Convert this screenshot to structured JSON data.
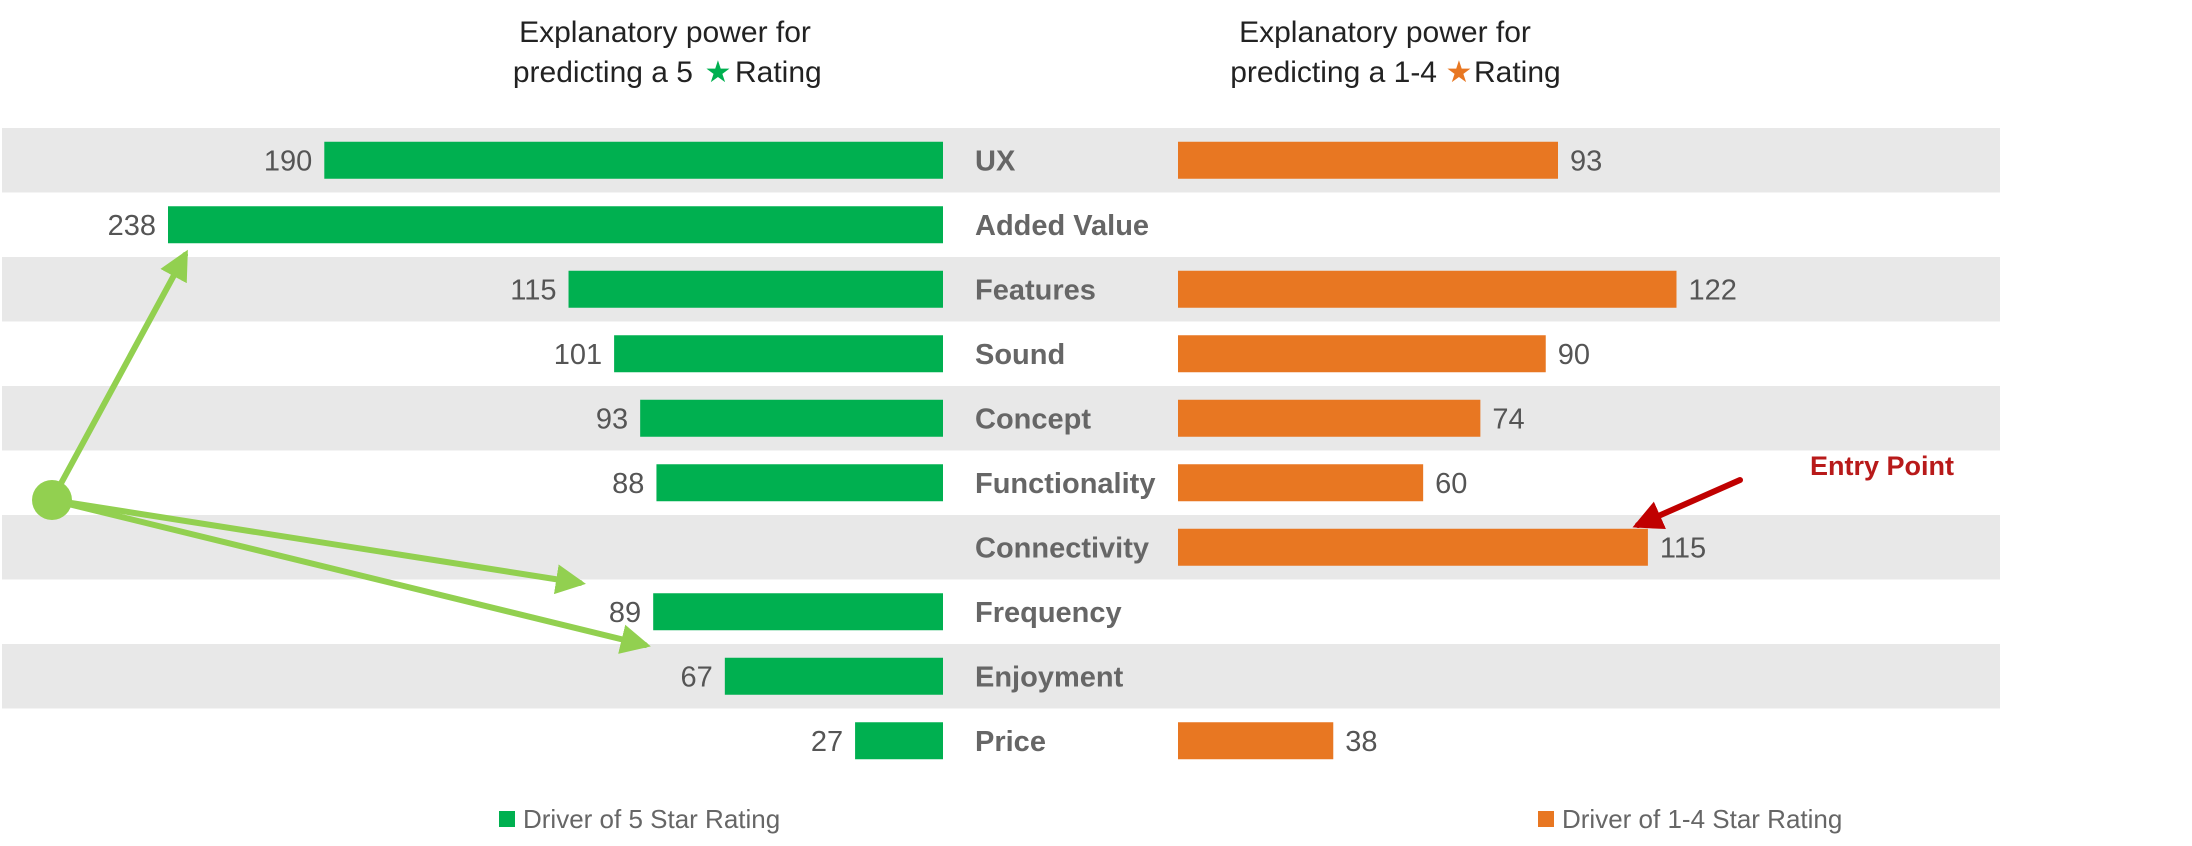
{
  "chart_data": {
    "type": "bar",
    "orientation": "horizontal-butterfly",
    "categories": [
      "UX",
      "Added Value",
      "Features",
      "Sound",
      "Concept",
      "Functionality",
      "Connectivity",
      "Frequency",
      "Enjoyment",
      "Price"
    ],
    "series": [
      {
        "name": "Driver of 5 Star Rating",
        "color": "#00b050",
        "title_line1": "Explanatory power for",
        "title_line2_pre": "predicting a 5",
        "title_line2_post": "Rating",
        "values": [
          190,
          238,
          115,
          101,
          93,
          88,
          null,
          89,
          67,
          27
        ]
      },
      {
        "name": "Driver of 1-4 Star Rating",
        "color": "#e87722",
        "title_line1": "Explanatory power for",
        "title_line2_pre": "predicting a 1-4",
        "title_line2_post": "Rating",
        "values": [
          93,
          null,
          122,
          90,
          74,
          60,
          115,
          null,
          null,
          38
        ]
      }
    ],
    "row_band_color": "#e8e8e8",
    "annotations": [
      {
        "text": "Entry Point",
        "color": "#b81a1a",
        "target_category": "Connectivity"
      }
    ],
    "connector_color": "#92d050",
    "connector_targets": [
      "Added Value",
      "Connectivity",
      "Frequency"
    ]
  }
}
